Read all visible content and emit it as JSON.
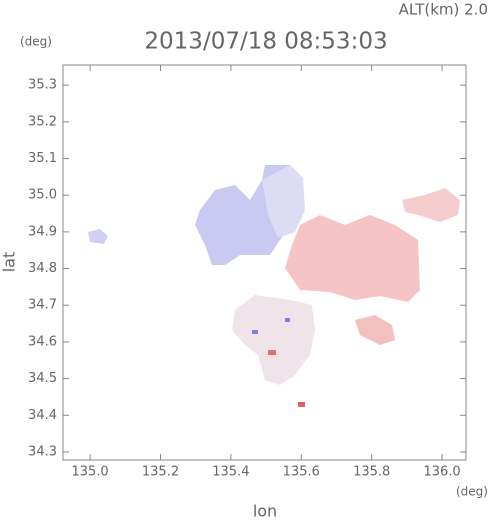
{
  "chart_data": {
    "type": "map",
    "title": "2013/07/18 08:53:03",
    "altitude_label": "ALT(km)  2.0",
    "y_unit": "(deg)",
    "x_unit": "(deg)",
    "xlabel": "lon",
    "ylabel": "lat",
    "xlim": [
      134.923,
      136.068
    ],
    "ylim": [
      34.278,
      35.355
    ],
    "xticks": [
      {
        "value": 135,
        "label": "135.0"
      },
      135.2,
      135.4,
      135.6,
      135.8,
      {
        "value": 136,
        "label": "136.0"
      }
    ],
    "yticks": [
      34.3,
      34.4,
      34.5,
      34.6,
      34.7,
      34.8,
      34.9,
      {
        "value": 35,
        "label": "35.0"
      },
      35.1,
      35.2,
      35.3
    ]
  }
}
